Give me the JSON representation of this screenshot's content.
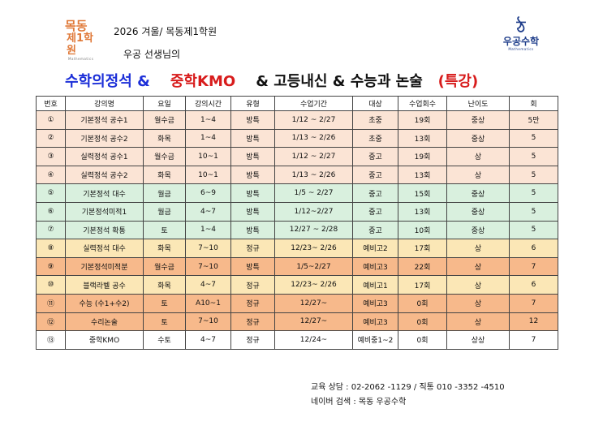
{
  "logo_left": {
    "line1": "목동",
    "line2": "제1학원",
    "sub": "Mathematics"
  },
  "header": {
    "line1": "2026 겨울/ 목동제1학원",
    "line2": "우공 선생님의"
  },
  "logo_right": {
    "glyph": "ঠ",
    "name": "우공수학",
    "sub": "Mathematics"
  },
  "title": {
    "part1": "수학의정석 &",
    "part2": "중학KMO",
    "part3": "& 고등내신 & 수능과 논술",
    "part4": "(특강)"
  },
  "colors": {
    "peach": "#fbe4d5",
    "green": "#d9f0de",
    "yellow": "#fbe7b6",
    "orange": "#f7b98b",
    "title_blue": "#1c2fd8",
    "title_red": "#d81c1c"
  },
  "table": {
    "headers": [
      "번호",
      "강의명",
      "요일",
      "강의시간",
      "유형",
      "수업기간",
      "대상",
      "수업회수",
      "난이도",
      "회"
    ],
    "rows": [
      {
        "color": "peach",
        "cells": [
          "①",
          "기본정석 공수1",
          "월수금",
          "1~4",
          "방특",
          "1/12 ~ 2/27",
          "초중",
          "19회",
          "중상",
          "5만"
        ]
      },
      {
        "color": "peach",
        "cells": [
          "②",
          "기본정석 공수2",
          "화목",
          "1~4",
          "방특",
          "1/13 ~ 2/26",
          "초중",
          "13회",
          "중상",
          "5"
        ]
      },
      {
        "color": "peach",
        "cells": [
          "③",
          "실력정석 공수1",
          "월수금",
          "10~1",
          "방특",
          "1/12 ~ 2/27",
          "중고",
          "19회",
          "상",
          "5"
        ]
      },
      {
        "color": "peach",
        "cells": [
          "④",
          "실력정석 공수2",
          "화목",
          "10~1",
          "방특",
          "1/13 ~ 2/26",
          "중고",
          "13회",
          "상",
          "5"
        ]
      },
      {
        "color": "green",
        "cells": [
          "⑤",
          "기본정석 대수",
          "월금",
          "6~9",
          "방특",
          "1/5 ~ 2/27",
          "중고",
          "15회",
          "중상",
          "5"
        ]
      },
      {
        "color": "green",
        "cells": [
          "⑥",
          "기본정석미적1",
          "월금",
          "4~7",
          "방특",
          "1/12~2/27",
          "중고",
          "13회",
          "중상",
          "5"
        ]
      },
      {
        "color": "green",
        "cells": [
          "⑦",
          "기본정석 확통",
          "토",
          "1~4",
          "방특",
          "12/27 ~ 2/28",
          "중고",
          "10회",
          "중상",
          "5"
        ]
      },
      {
        "color": "yellow",
        "cells": [
          "⑧",
          "실력정석 대수",
          "화목",
          "7~10",
          "정규",
          "12/23~ 2/26",
          "예비고2",
          "17회",
          "상",
          "6"
        ]
      },
      {
        "color": "orange",
        "cells": [
          "⑨",
          "기본정석미적분",
          "월수금",
          "7~10",
          "방특",
          "1/5~2/27",
          "예비고3",
          "22회",
          "상",
          "7"
        ]
      },
      {
        "color": "yellow",
        "cells": [
          "⑩",
          "블랙라벨 공수",
          "화목",
          "4~7",
          "정규",
          "12/23~ 2/26",
          "예비고1",
          "17회",
          "상",
          "6"
        ]
      },
      {
        "color": "orange",
        "cells": [
          "⑪",
          "수능 (수1+수2)",
          "토",
          "A10~1",
          "정규",
          "12/27~",
          "예비고3",
          "0회",
          "상",
          "7"
        ]
      },
      {
        "color": "orange",
        "cells": [
          "⑫",
          "수리논술",
          "토",
          "7~10",
          "정규",
          "12/27~",
          "예비고3",
          "0회",
          "상",
          "12"
        ]
      },
      {
        "color": "white",
        "cells": [
          "⑬",
          "중학KMO",
          "수토",
          "4~7",
          "정규",
          "12/24~",
          "예비중1~2",
          "0회",
          "상상",
          "7"
        ]
      }
    ]
  },
  "footer": {
    "line1": "교육 상담 : 02-2062 -1129 / 직통 010 -3352 -4510",
    "line2": "네이버 검색 : 목동 우공수학"
  }
}
